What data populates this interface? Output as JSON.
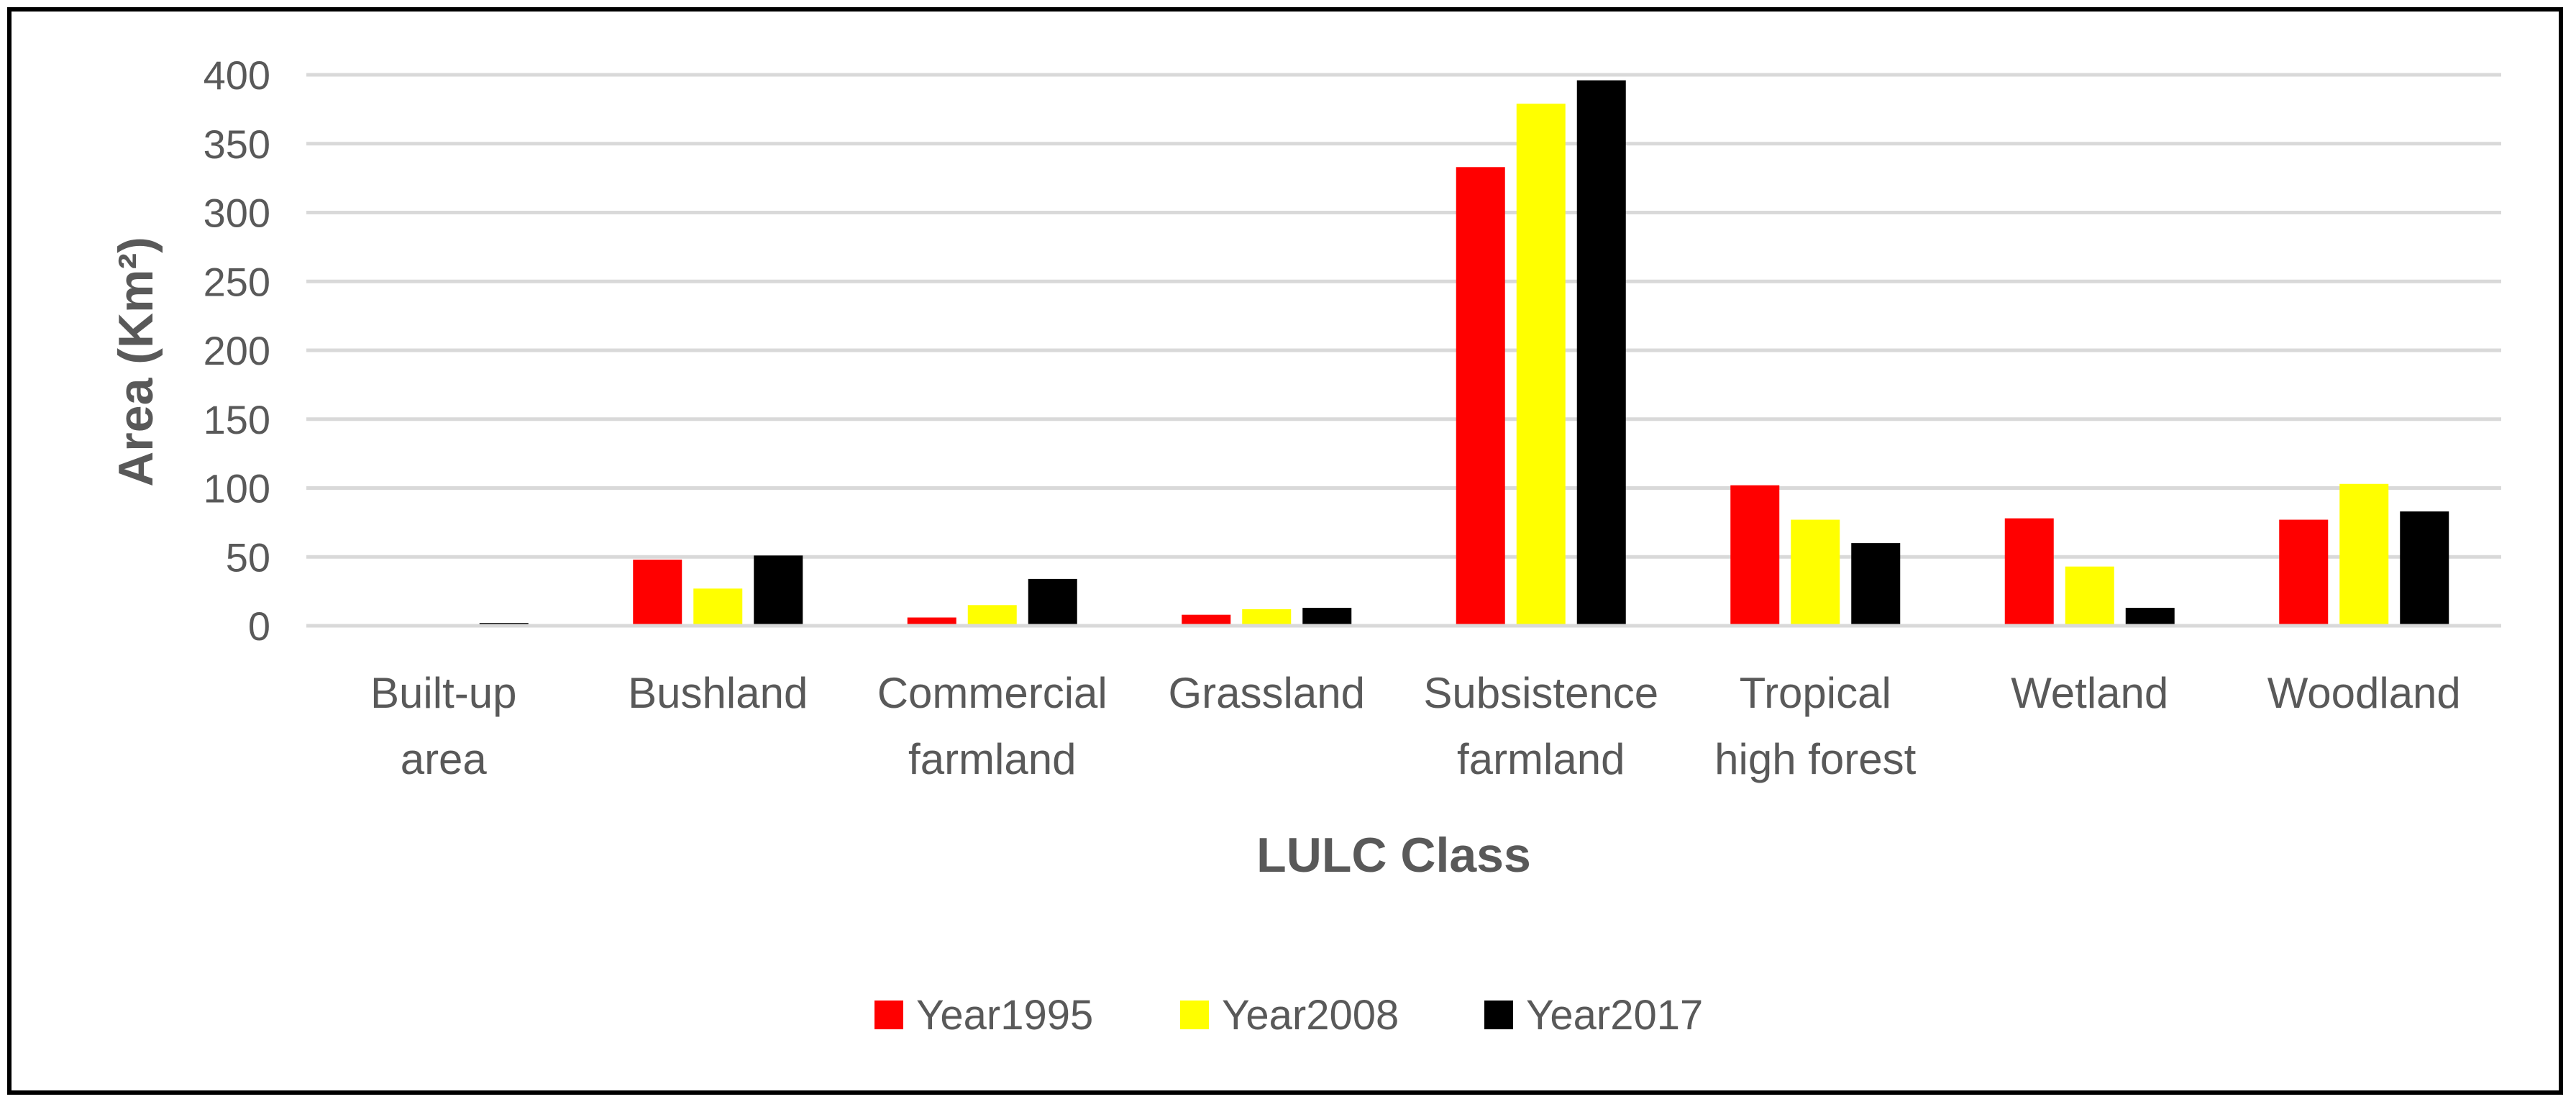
{
  "chart_data": {
    "type": "bar",
    "title": "",
    "xlabel": "LULC Class",
    "ylabel": "Area (Km²)",
    "ylim": [
      0,
      400
    ],
    "yticks": [
      "0",
      "50",
      "100",
      "150",
      "200",
      "250",
      "300",
      "350",
      "400"
    ],
    "grid": true,
    "legend_position": "bottom",
    "categories": [
      [
        "Built-up",
        "area"
      ],
      [
        "Bushland"
      ],
      [
        "Commercial",
        "farmland"
      ],
      [
        "Grassland"
      ],
      [
        "Subsistence",
        "farmland"
      ],
      [
        "Tropical",
        "high forest"
      ],
      [
        "Wetland"
      ],
      [
        "Woodland"
      ]
    ],
    "series": [
      {
        "name": "Year1995",
        "color": "#FF0000",
        "values": [
          0.3,
          48,
          6,
          8,
          333,
          102,
          78,
          77
        ]
      },
      {
        "name": "Year2008",
        "color": "#FFFF00",
        "values": [
          0.5,
          27,
          15,
          12,
          379,
          77,
          43,
          103
        ]
      },
      {
        "name": "Year2017",
        "color": "#000000",
        "values": [
          2,
          51,
          34,
          13,
          396,
          60,
          13,
          83
        ]
      }
    ]
  }
}
